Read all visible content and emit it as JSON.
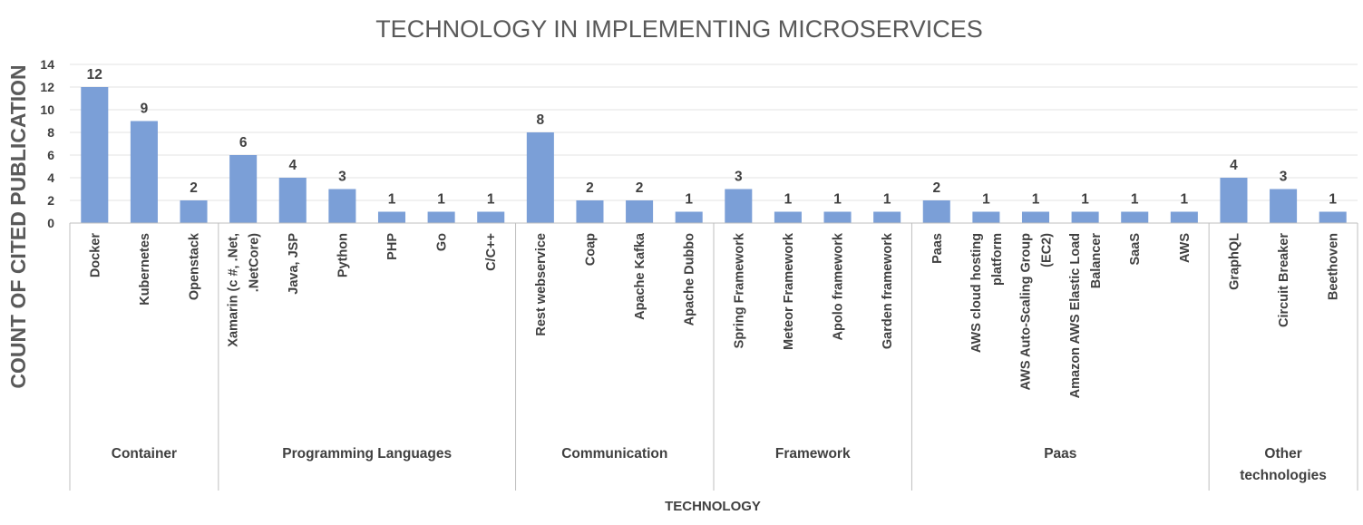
{
  "chart_data": {
    "type": "bar",
    "title": "TECHNOLOGY IN IMPLEMENTING MICROSERVICES",
    "xlabel": "TECHNOLOGY",
    "ylabel": "COUNT OF CITED PUBLICATION",
    "ylim": [
      0,
      14
    ],
    "yticks": [
      0,
      2,
      4,
      6,
      8,
      10,
      12,
      14
    ],
    "grid": true,
    "legend": "none",
    "bar_color": "#7b9fd7",
    "groups": [
      {
        "label": [
          "Container"
        ],
        "categories": [
          {
            "label": [
              "Docker"
            ],
            "value": 12
          },
          {
            "label": [
              "Kubernetes"
            ],
            "value": 9
          },
          {
            "label": [
              "Openstack"
            ],
            "value": 2
          }
        ]
      },
      {
        "label": [
          "Programming Languages"
        ],
        "categories": [
          {
            "label": [
              "Xamarin (c #, .Net,",
              ".NetCore)"
            ],
            "value": 6
          },
          {
            "label": [
              "Java, JSP"
            ],
            "value": 4
          },
          {
            "label": [
              "Python"
            ],
            "value": 3
          },
          {
            "label": [
              "PHP"
            ],
            "value": 1
          },
          {
            "label": [
              "Go"
            ],
            "value": 1
          },
          {
            "label": [
              "C/C++"
            ],
            "value": 1
          }
        ]
      },
      {
        "label": [
          "Communication"
        ],
        "categories": [
          {
            "label": [
              "Rest webservice"
            ],
            "value": 8
          },
          {
            "label": [
              "Coap"
            ],
            "value": 2
          },
          {
            "label": [
              "Apache Kafka"
            ],
            "value": 2
          },
          {
            "label": [
              "Apache Dubbo"
            ],
            "value": 1
          }
        ]
      },
      {
        "label": [
          "Framework"
        ],
        "categories": [
          {
            "label": [
              "Spring Framework"
            ],
            "value": 3
          },
          {
            "label": [
              "Meteor Framework"
            ],
            "value": 1
          },
          {
            "label": [
              "Apolo framework"
            ],
            "value": 1
          },
          {
            "label": [
              "Garden framework"
            ],
            "value": 1
          }
        ]
      },
      {
        "label": [
          "Paas"
        ],
        "categories": [
          {
            "label": [
              "Paas"
            ],
            "value": 2
          },
          {
            "label": [
              "AWS cloud hosting",
              "platform"
            ],
            "value": 1
          },
          {
            "label": [
              "AWS Auto-Scaling Group",
              "(EC2)"
            ],
            "value": 1
          },
          {
            "label": [
              "Amazon AWS Elastic Load",
              "Balancer"
            ],
            "value": 1
          },
          {
            "label": [
              "SaaS"
            ],
            "value": 1
          },
          {
            "label": [
              "AWS"
            ],
            "value": 1
          }
        ]
      },
      {
        "label": [
          "Other",
          "technologies"
        ],
        "categories": [
          {
            "label": [
              "GraphQL"
            ],
            "value": 4
          },
          {
            "label": [
              "Circuit Breaker"
            ],
            "value": 3
          },
          {
            "label": [
              "Beethoven"
            ],
            "value": 1
          }
        ]
      }
    ]
  }
}
